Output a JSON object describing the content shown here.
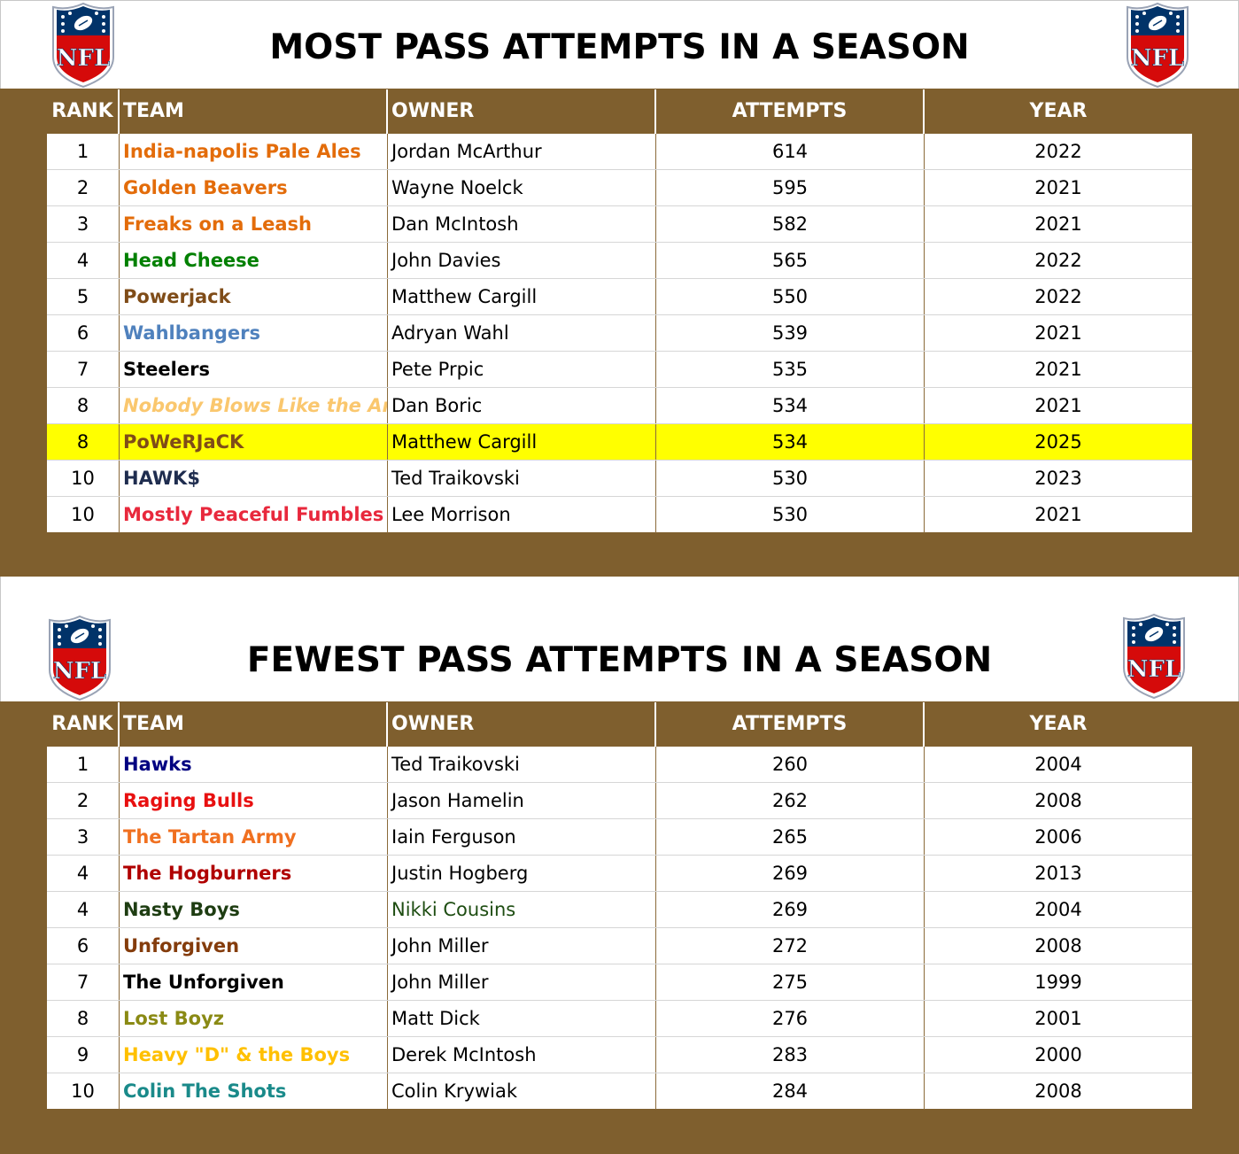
{
  "top": {
    "title": "MOST PASS ATTEMPTS IN A SEASON",
    "headers": {
      "rank": "RANK",
      "team": "TEAM",
      "owner": "OWNER",
      "attempts": "ATTEMPTS",
      "year": "YEAR"
    },
    "rows": [
      {
        "rank": "1",
        "team": "India-napolis Pale Ales",
        "team_color": "#e36c0a",
        "owner": "Jordan McArthur",
        "attempts": "614",
        "year": "2022"
      },
      {
        "rank": "2",
        "team": "Golden Beavers",
        "team_color": "#e36c0a",
        "owner": "Wayne Noelck",
        "attempts": "595",
        "year": "2021"
      },
      {
        "rank": "3",
        "team": "Freaks on a Leash",
        "team_color": "#e36c0a",
        "owner": "Dan McIntosh",
        "attempts": "582",
        "year": "2021"
      },
      {
        "rank": "4",
        "team": "Head Cheese",
        "team_color": "#008000",
        "owner": "John Davies",
        "attempts": "565",
        "year": "2022"
      },
      {
        "rank": "5",
        "team": "Powerjack",
        "team_color": "#7f4c18",
        "owner": "Matthew Cargill",
        "attempts": "550",
        "year": "2022"
      },
      {
        "rank": "6",
        "team": "Wahlbangers",
        "team_color": "#4f81bd",
        "owner": "Adryan Wahl",
        "attempts": "539",
        "year": "2021"
      },
      {
        "rank": "7",
        "team": "Steelers",
        "team_color": "#000000",
        "owner": "Pete Prpic",
        "attempts": "535",
        "year": "2021"
      },
      {
        "rank": "8",
        "team": "Nobody Blows Like the Argos",
        "team_color": "#fac76e",
        "italic": true,
        "owner": "Dan Boric",
        "attempts": "534",
        "year": "2021"
      },
      {
        "rank": "8",
        "team": "PoWeRJaCK",
        "team_color": "#7f4c18",
        "highlight": true,
        "owner": "Matthew Cargill",
        "attempts": "534",
        "year": "2025"
      },
      {
        "rank": "10",
        "team": "HAWK$",
        "team_color": "#1f2d4f",
        "owner": "Ted Traikovski",
        "attempts": "530",
        "year": "2023"
      },
      {
        "rank": "10",
        "team": "Mostly Peaceful Fumbles",
        "team_color": "#e8283c",
        "owner": "Lee Morrison",
        "attempts": "530",
        "year": "2021"
      }
    ]
  },
  "bottom": {
    "title": "FEWEST PASS ATTEMPTS IN A SEASON",
    "headers": {
      "rank": "RANK",
      "team": "TEAM",
      "owner": "OWNER",
      "attempts": "ATTEMPTS",
      "year": "YEAR"
    },
    "rows": [
      {
        "rank": "1",
        "team": "Hawks",
        "team_color": "#000080",
        "owner": "Ted Traikovski",
        "attempts": "260",
        "year": "2004"
      },
      {
        "rank": "2",
        "team": "Raging Bulls",
        "team_color": "#e81010",
        "owner": "Jason Hamelin",
        "attempts": "262",
        "year": "2008"
      },
      {
        "rank": "3",
        "team": "The Tartan Army",
        "team_color": "#f07020",
        "owner": "Iain Ferguson",
        "attempts": "265",
        "year": "2006"
      },
      {
        "rank": "4",
        "team": "The Hogburners",
        "team_color": "#b00000",
        "owner": "Justin Hogberg",
        "attempts": "269",
        "year": "2013"
      },
      {
        "rank": "4",
        "team": "Nasty Boys",
        "team_color": "#1e3d12",
        "owner": "Nikki Cousins",
        "owner_color": "#1e4d12",
        "attempts": "269",
        "year": "2004"
      },
      {
        "rank": "6",
        "team": "Unforgiven",
        "team_color": "#843c0c",
        "owner": "John Miller",
        "attempts": "272",
        "year": "2008"
      },
      {
        "rank": "7",
        "team": "The Unforgiven",
        "team_color": "#000000",
        "owner": "John Miller",
        "attempts": "275",
        "year": "1999"
      },
      {
        "rank": "8",
        "team": "Lost Boyz",
        "team_color": "#8a8a14",
        "owner": "Matt Dick",
        "attempts": "276",
        "year": "2001"
      },
      {
        "rank": "9",
        "team": "Heavy \"D\" & the Boys",
        "team_color": "#ffc000",
        "owner": "Derek McIntosh",
        "attempts": "283",
        "year": "2000"
      },
      {
        "rank": "10",
        "team": "Colin The Shots",
        "team_color": "#1a8a8a",
        "owner": "Colin Krywiak",
        "attempts": "284",
        "year": "2008"
      }
    ]
  },
  "logo": {
    "text": "NFL",
    "icon": "nfl-shield-logo"
  },
  "colors": {
    "band": "#7f5f2e",
    "highlight": "#ffff00"
  }
}
